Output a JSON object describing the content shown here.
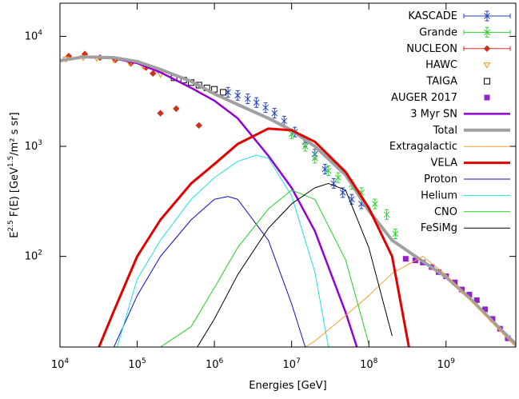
{
  "chart_data": {
    "type": "line",
    "x_label": "Energies [GeV]",
    "y_label": "E^{2.5} F(E) [GeV^{1.5}/m² s sr]",
    "x_log": true,
    "y_log": true,
    "grid": false,
    "legend": "top-right",
    "xlim": [
      10000,
      8000000000
    ],
    "ylim": [
      15,
      20000
    ],
    "xticks": [
      {
        "value": 10000,
        "label": "10^{4}"
      },
      {
        "value": 100000,
        "label": "10^{5}"
      },
      {
        "value": 1000000,
        "label": "10^{6}"
      },
      {
        "value": 10000000,
        "label": "10^{7}"
      },
      {
        "value": 100000000,
        "label": "10^{8}"
      },
      {
        "value": 1000000000,
        "label": "10^{9}"
      }
    ],
    "yticks": [
      {
        "value": 100,
        "label": "10^{2}"
      },
      {
        "value": 1000,
        "label": "10^{3}"
      },
      {
        "value": 10000,
        "label": "10^{4}"
      }
    ],
    "series": [
      {
        "name": "KASCADE",
        "kind": "points",
        "marker": "cross",
        "color": "#2040c0",
        "x": [
          1500000,
          2000000,
          2700000,
          3500000,
          4600000,
          6000000,
          8000000,
          11000000,
          15000000,
          20000000,
          27000000,
          35000000,
          46000000,
          60000000,
          80000000
        ],
        "values": [
          3100,
          2900,
          2700,
          2500,
          2250,
          2000,
          1700,
          1350,
          1100,
          850,
          620,
          460,
          380,
          330,
          300
        ]
      },
      {
        "name": "Grande",
        "kind": "points",
        "marker": "cross",
        "color": "#30d030",
        "x": [
          10000000,
          15000000,
          20000000,
          30000000,
          40000000,
          60000000,
          80000000,
          120000000,
          170000000,
          220000000
        ],
        "values": [
          1300,
          1000,
          780,
          600,
          520,
          450,
          380,
          300,
          240,
          160
        ]
      },
      {
        "name": "NUCLEON",
        "kind": "points",
        "marker": "diamond",
        "color": "#d03020",
        "x": [
          13000,
          21000,
          33000,
          52000,
          83000,
          130000,
          160000,
          200000,
          320000,
          630000
        ],
        "values": [
          6600,
          6900,
          6400,
          6100,
          5700,
          5200,
          4600,
          2000,
          2200,
          1550
        ]
      },
      {
        "name": "HAWC",
        "kind": "points",
        "marker": "triangle",
        "color": "#f0a030",
        "x": [
          12000,
          20000,
          30000,
          50000,
          80000,
          120000,
          200000
        ],
        "values": [
          6200,
          6400,
          6300,
          6100,
          5700,
          5300,
          4500
        ]
      },
      {
        "name": "TAIGA",
        "kind": "points",
        "marker": "square-open",
        "color": "#000000",
        "x": [
          300000,
          400000,
          500000,
          630000,
          800000,
          1000000,
          1300000
        ],
        "values": [
          4200,
          4000,
          3800,
          3600,
          3400,
          3300,
          3100
        ]
      },
      {
        "name": "AUGER 2017",
        "kind": "points",
        "marker": "square",
        "color": "#9020d0",
        "x": [
          300000000,
          400000000,
          500000000,
          650000000,
          800000000,
          1000000000,
          1300000000,
          1600000000,
          2000000000,
          2500000000,
          3200000000,
          4000000000,
          5000000000,
          6300000000
        ],
        "values": [
          95,
          92,
          88,
          80,
          72,
          66,
          58,
          50,
          45,
          40,
          33,
          27,
          22,
          18
        ]
      },
      {
        "name": "3 Myr SN",
        "kind": "line",
        "line_width": 2.5,
        "color": "#9400d3",
        "x": [
          10000,
          20000,
          50000,
          100000,
          200000,
          500000,
          1000000,
          2000000,
          5000000,
          10000000,
          20000000,
          50000000,
          70000000
        ],
        "values": [
          6000,
          6500,
          6300,
          5700,
          4700,
          3400,
          2600,
          1800,
          820,
          420,
          170,
          31,
          15
        ]
      },
      {
        "name": "Total",
        "kind": "line",
        "line_width": 4,
        "color": "#a0a0a0",
        "x": [
          10000,
          20000,
          50000,
          100000,
          200000,
          500000,
          1000000,
          2000000,
          5000000,
          10000000,
          20000000,
          50000000,
          100000000,
          200000000,
          500000000,
          1000000000,
          2000000000,
          5000000000,
          8000000000
        ],
        "values": [
          6000,
          6500,
          6400,
          5900,
          5000,
          3900,
          3000,
          2400,
          1800,
          1400,
          1000,
          550,
          260,
          140,
          90,
          65,
          42,
          22,
          16
        ]
      },
      {
        "name": "Extragalactic",
        "kind": "line",
        "line_width": 1,
        "color": "#f0a030",
        "x": [
          15000000,
          20000000,
          50000000,
          100000000,
          200000000,
          500000000,
          1000000000,
          2000000000,
          5000000000,
          8000000000
        ],
        "values": [
          15,
          17,
          29,
          44,
          70,
          100,
          68,
          41,
          21,
          15
        ]
      },
      {
        "name": "VELA",
        "kind": "line",
        "line_width": 3,
        "color": "#e00000",
        "x": [
          32000,
          50000,
          100000,
          200000,
          500000,
          1000000,
          2000000,
          5000000,
          10000000,
          20000000,
          50000000,
          100000000,
          200000000,
          330000000
        ],
        "values": [
          15,
          32,
          100,
          215,
          460,
          690,
          1050,
          1450,
          1400,
          1100,
          585,
          275,
          100,
          15
        ]
      },
      {
        "name": "Proton",
        "kind": "line",
        "line_width": 1,
        "color": "#1010c0",
        "x": [
          50000,
          100000,
          200000,
          500000,
          1000000,
          1500000,
          2000000,
          5000000,
          10000000,
          15000000
        ],
        "values": [
          15,
          44,
          100,
          215,
          330,
          350,
          330,
          140,
          37,
          15
        ]
      },
      {
        "name": "Helium",
        "kind": "line",
        "line_width": 1,
        "color": "#20e0e0",
        "x": [
          55000,
          100000,
          200000,
          500000,
          1000000,
          2000000,
          3500000,
          5000000,
          10000000,
          20000000,
          30000000
        ],
        "values": [
          15,
          62,
          140,
          330,
          520,
          730,
          830,
          780,
          355,
          72,
          15
        ]
      },
      {
        "name": "CNO",
        "kind": "line",
        "line_width": 1,
        "color": "#20d020",
        "x": [
          200000,
          500000,
          1000000,
          2000000,
          5000000,
          10000000,
          20000000,
          50000000,
          100000000
        ],
        "values": [
          15,
          23,
          52,
          120,
          270,
          400,
          330,
          93,
          16
        ]
      },
      {
        "name": "FeSiMg",
        "kind": "line",
        "line_width": 1,
        "color": "#000000",
        "x": [
          600000,
          1000000,
          2000000,
          5000000,
          10000000,
          20000000,
          30000000,
          50000000,
          100000000,
          200000000
        ],
        "values": [
          15,
          27,
          68,
          180,
          300,
          420,
          460,
          400,
          120,
          19
        ]
      }
    ]
  }
}
